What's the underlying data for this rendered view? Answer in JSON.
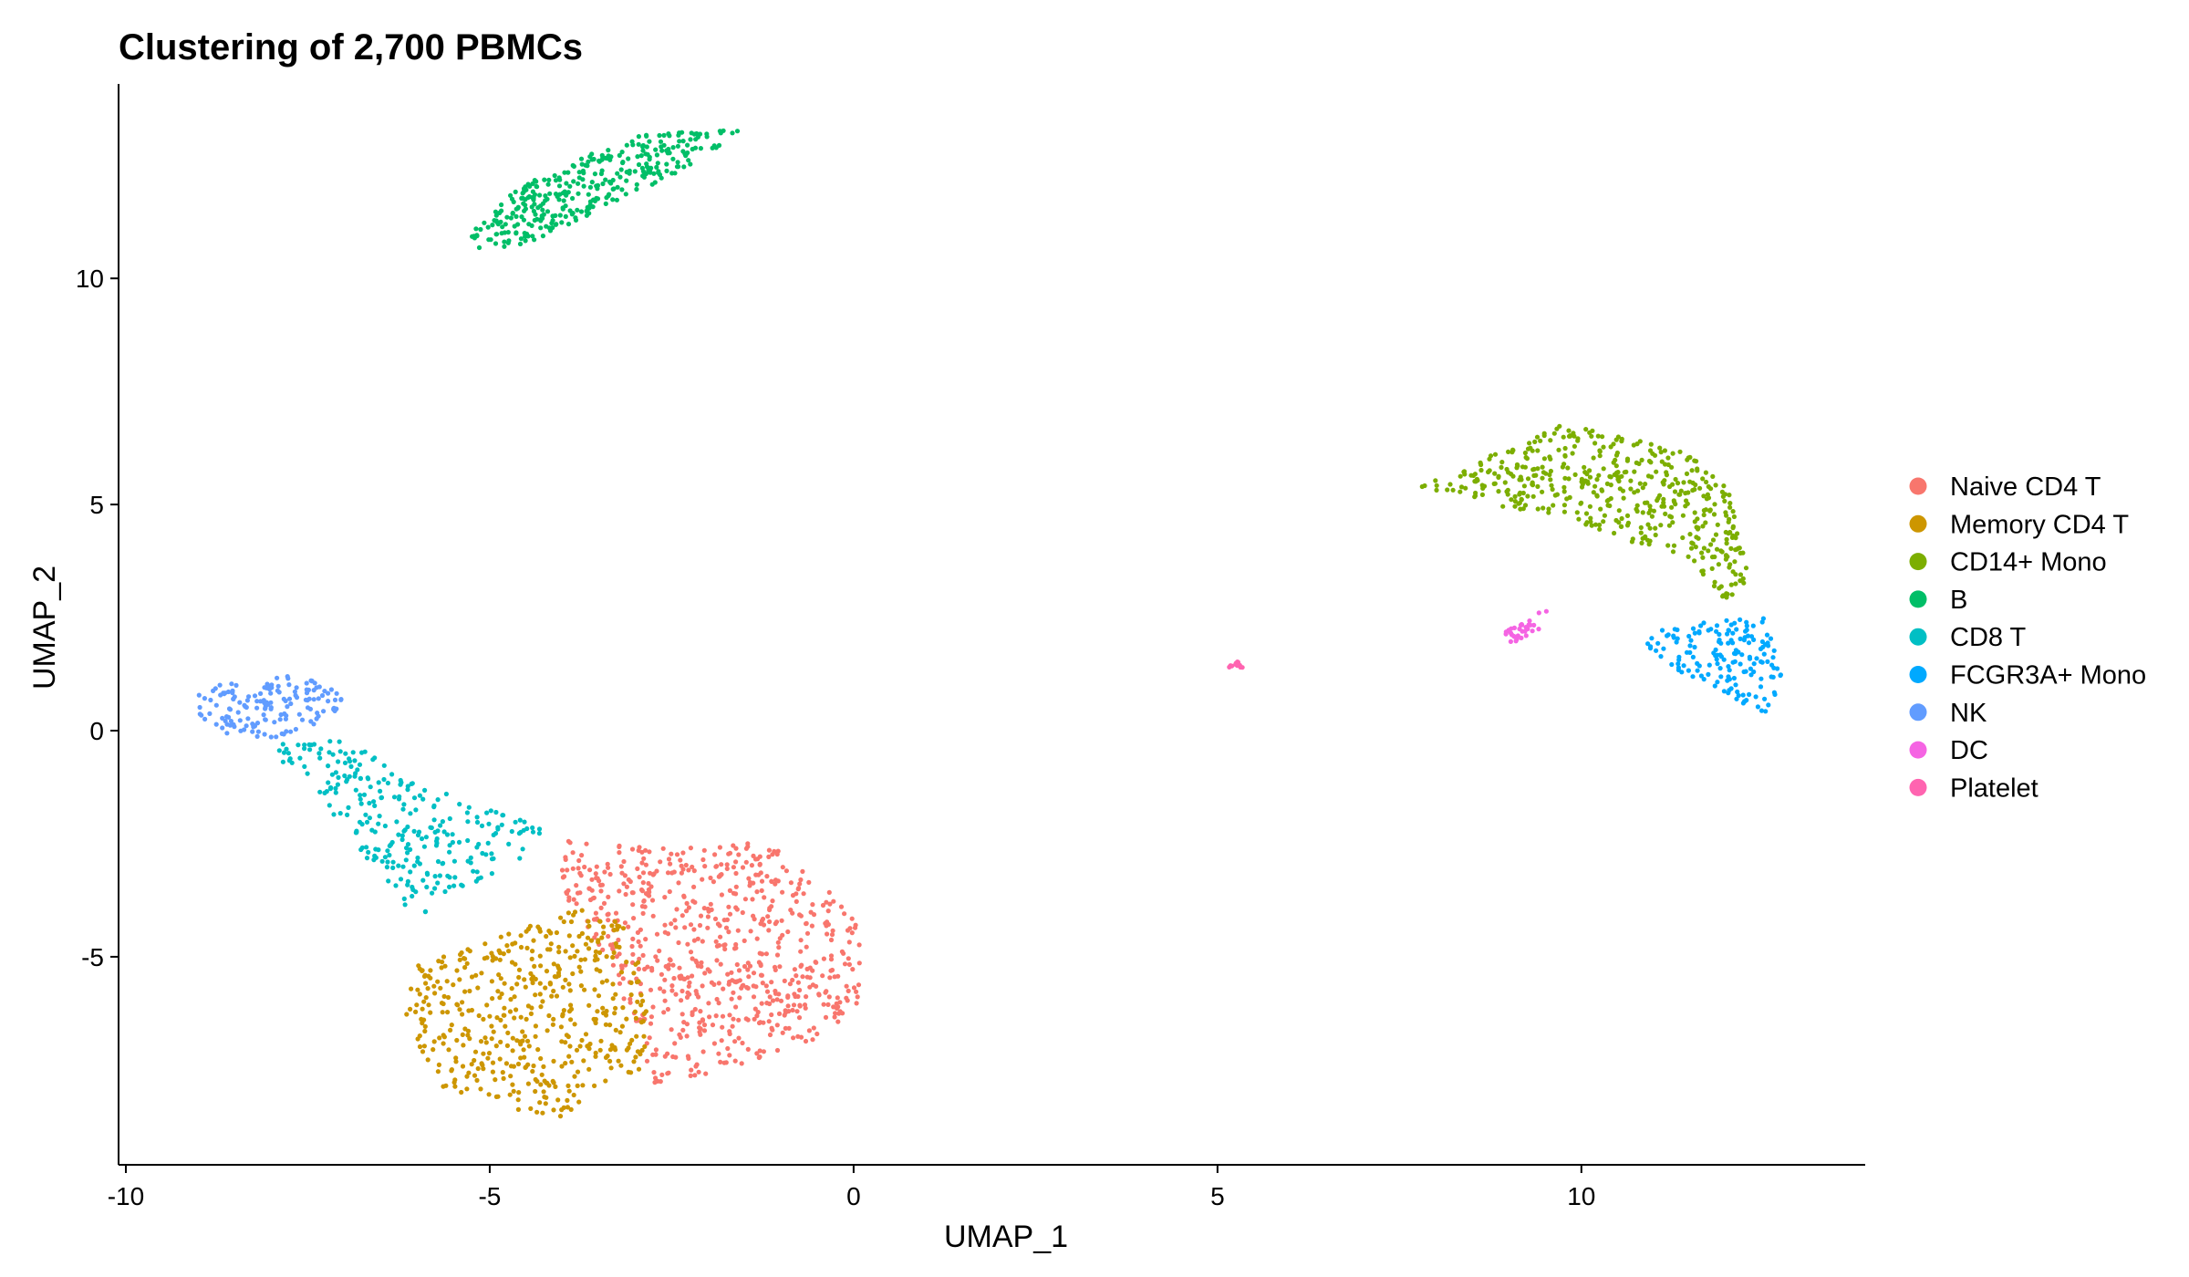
{
  "chart_data": {
    "type": "scatter",
    "title": "Clustering of 2,700 PBMCs",
    "xlabel": "UMAP_1",
    "ylabel": "UMAP_2",
    "xlim": [
      -10.1,
      13.9
    ],
    "ylim": [
      -9.6,
      14.3
    ],
    "xticks": [
      -10,
      -5,
      0,
      5,
      10
    ],
    "xtick_labels": [
      "-10",
      "-5",
      "0",
      "5",
      "10"
    ],
    "yticks": [
      -5,
      0,
      5,
      10
    ],
    "ytick_labels": [
      "-5",
      "0",
      "5",
      "10"
    ],
    "grid": false,
    "legend_position": "right",
    "series": [
      {
        "name": "Naive CD4 T",
        "color": "#F8766D",
        "cells": 697,
        "region": [
          [
            -4.1,
            -2.4
          ],
          [
            -2.5,
            -2.6
          ],
          [
            -1.2,
            -2.4
          ],
          [
            -0.5,
            -3.3
          ],
          [
            0.1,
            -4.3
          ],
          [
            0.1,
            -6.2
          ],
          [
            -0.6,
            -6.9
          ],
          [
            -2.0,
            -7.6
          ],
          [
            -2.8,
            -7.8
          ],
          [
            -3.0,
            -6.6
          ],
          [
            -3.4,
            -5.0
          ],
          [
            -4.0,
            -3.6
          ]
        ]
      },
      {
        "name": "Memory CD4 T",
        "color": "#CD9600",
        "cells": 483,
        "region": [
          [
            -6.0,
            -5.2
          ],
          [
            -4.6,
            -4.4
          ],
          [
            -3.8,
            -3.9
          ],
          [
            -3.1,
            -4.3
          ],
          [
            -2.8,
            -5.8
          ],
          [
            -2.9,
            -7.5
          ],
          [
            -3.5,
            -7.8
          ],
          [
            -4.0,
            -8.6
          ],
          [
            -4.6,
            -8.4
          ],
          [
            -5.8,
            -7.8
          ],
          [
            -6.0,
            -6.9
          ],
          [
            -6.2,
            -6.1
          ]
        ]
      },
      {
        "name": "CD14+ Mono",
        "color": "#7CAE00",
        "cells": 480,
        "region": [
          [
            7.8,
            5.4
          ],
          [
            8.6,
            6.0
          ],
          [
            9.8,
            6.8
          ],
          [
            10.6,
            6.5
          ],
          [
            11.4,
            6.2
          ],
          [
            12.0,
            5.4
          ],
          [
            12.2,
            4.4
          ],
          [
            12.3,
            3.4
          ],
          [
            12.0,
            2.8
          ],
          [
            11.5,
            3.8
          ],
          [
            10.6,
            4.2
          ],
          [
            9.6,
            4.8
          ],
          [
            8.7,
            5.0
          ]
        ]
      },
      {
        "name": "B",
        "color": "#00BE67",
        "cells": 344,
        "region": [
          [
            -5.3,
            11.0
          ],
          [
            -4.6,
            12.0
          ],
          [
            -3.7,
            12.7
          ],
          [
            -2.9,
            13.2
          ],
          [
            -1.5,
            13.3
          ],
          [
            -2.2,
            12.5
          ],
          [
            -3.4,
            11.6
          ],
          [
            -4.4,
            10.8
          ],
          [
            -5.2,
            10.6
          ]
        ]
      },
      {
        "name": "CD8 T",
        "color": "#00BFC4",
        "cells": 271,
        "region": [
          [
            -7.8,
            0.0
          ],
          [
            -6.8,
            -0.3
          ],
          [
            -6.0,
            -1.2
          ],
          [
            -5.0,
            -1.7
          ],
          [
            -4.2,
            -2.2
          ],
          [
            -4.4,
            -2.8
          ],
          [
            -5.4,
            -3.5
          ],
          [
            -6.0,
            -4.2
          ],
          [
            -6.3,
            -3.6
          ],
          [
            -6.8,
            -2.6
          ],
          [
            -7.4,
            -1.3
          ],
          [
            -8.0,
            -0.6
          ]
        ]
      },
      {
        "name": "FCGR3A+ Mono",
        "color": "#00A9FF",
        "cells": 162,
        "region": [
          [
            11.0,
            2.2
          ],
          [
            12.1,
            2.5
          ],
          [
            12.5,
            2.5
          ],
          [
            12.7,
            1.6
          ],
          [
            12.9,
            1.0
          ],
          [
            12.6,
            0.4
          ],
          [
            12.3,
            0.5
          ],
          [
            12.0,
            0.8
          ],
          [
            11.2,
            1.4
          ],
          [
            10.9,
            1.9
          ]
        ]
      },
      {
        "name": "NK",
        "color": "#619CFF",
        "cells": 155,
        "region": [
          [
            -9.0,
            0.8
          ],
          [
            -8.6,
            1.1
          ],
          [
            -8.0,
            1.3
          ],
          [
            -7.4,
            1.1
          ],
          [
            -7.0,
            0.8
          ],
          [
            -7.2,
            0.2
          ],
          [
            -7.8,
            -0.2
          ],
          [
            -8.6,
            -0.1
          ],
          [
            -9.0,
            0.3
          ]
        ]
      },
      {
        "name": "DC",
        "color": "#F564E3",
        "cells": 32,
        "region": [
          [
            8.9,
            2.2
          ],
          [
            9.2,
            2.4
          ],
          [
            9.6,
            2.8
          ],
          [
            9.4,
            2.2
          ],
          [
            9.0,
            1.9
          ]
        ]
      },
      {
        "name": "Platelet",
        "color": "#FF64B0",
        "cells": 14,
        "region": [
          [
            5.15,
            1.55
          ],
          [
            5.35,
            1.52
          ],
          [
            5.35,
            1.38
          ],
          [
            5.15,
            1.4
          ]
        ]
      }
    ]
  }
}
